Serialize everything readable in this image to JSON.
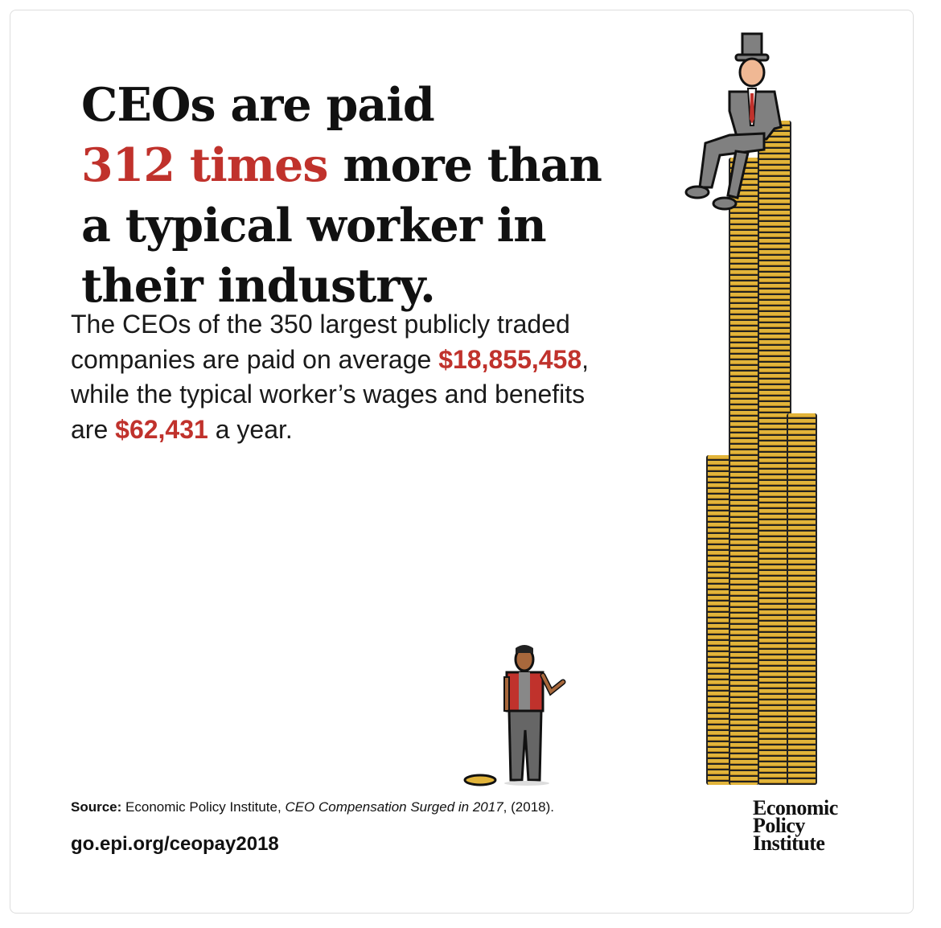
{
  "headline": {
    "line1": "CEOs are paid",
    "highlight": "312 times",
    "rest": " more than a typical worker in their industry."
  },
  "body": {
    "part1": "The CEOs of the 350 largest publicly traded companies are paid on average ",
    "ceo_pay": "$18,855,458",
    "part2": ", while the typical worker’s wages and benefits are ",
    "worker_pay": "$62,431",
    "part3": " a year."
  },
  "source": {
    "label": "Source:",
    "text": " Economic Policy Institute, ",
    "title": "CEO Compensation Surged in 2017",
    "year": ", (2018)."
  },
  "url": "go.epi.org/ceopay2018",
  "logo": {
    "line1": "Economic",
    "line2": "Policy",
    "line3": "Institute"
  },
  "colors": {
    "accent": "#c0322c",
    "coin": "#e2b43a"
  }
}
